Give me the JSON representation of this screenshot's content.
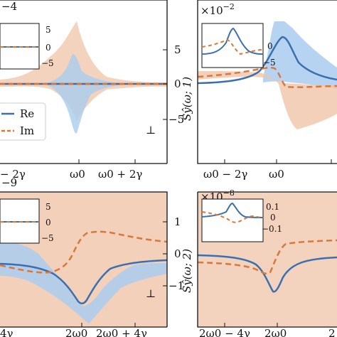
{
  "colors": {
    "re": "#3a6fb0",
    "im": "#d9783a",
    "band_re": "#a9cdef",
    "band_im": "#f0c4a8",
    "frame": "#111111"
  },
  "chart_data": [
    {
      "type": "line",
      "multiplier": "−4",
      "yticks": [
        "5",
        "0",
        "−5"
      ],
      "xticks": [
        "− 2γ",
        "ω0",
        "ω0 + 2γ"
      ],
      "ylabel": "",
      "legend": [
        "Re",
        "Im"
      ],
      "perp": "⊥",
      "ylim": [
        -8,
        8
      ],
      "inset_yticks": [
        "5",
        "0",
        "−5"
      ]
    },
    {
      "type": "line",
      "multiplier": "×10",
      "multiplier_exp": "−2",
      "xticks": [
        "ω0 − 2γ",
        "ω0"
      ],
      "ylabel": "Sŷ(ω; 1)",
      "inset_yticks": [
        "0",
        "−5"
      ]
    },
    {
      "type": "line",
      "multiplier": "−9",
      "yticks": [
        "1",
        "0",
        "−1"
      ],
      "xticks": [
        "4γ",
        "2ω0",
        "2ω0 + 4γ"
      ],
      "perp": "⊥",
      "ylim": [
        -1.6,
        1.6
      ],
      "inset_yticks": [
        "5",
        "0",
        "−5"
      ]
    },
    {
      "type": "line",
      "multiplier": "×10",
      "multiplier_exp": "−8",
      "xticks": [
        "2ω0 − 4γ",
        "2ω0",
        "2"
      ],
      "ylabel": "Sŷ(ω; 2)",
      "inset_yticks": [
        "0.1",
        "0",
        "−0.1"
      ]
    }
  ]
}
